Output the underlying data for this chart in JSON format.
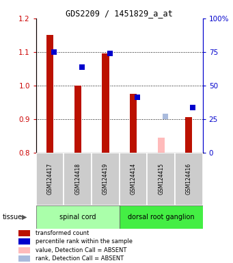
{
  "title": "GDS2209 / 1451829_a_at",
  "samples": [
    "GSM124417",
    "GSM124418",
    "GSM124419",
    "GSM124414",
    "GSM124415",
    "GSM124416"
  ],
  "red_values": [
    1.15,
    1.0,
    1.095,
    0.975,
    null,
    0.905
  ],
  "blue_values": [
    1.1,
    1.055,
    1.095,
    0.965,
    null,
    0.935
  ],
  "pink_values": [
    null,
    null,
    null,
    null,
    0.845,
    null
  ],
  "lavender_values": [
    null,
    null,
    null,
    null,
    0.907,
    null
  ],
  "red_color": "#bb1100",
  "blue_color": "#0000cc",
  "pink_color": "#ffbbbb",
  "lavender_color": "#aabbdd",
  "ylim_left": [
    0.8,
    1.2
  ],
  "ylim_right": [
    0,
    100
  ],
  "yticks_left": [
    0.8,
    0.9,
    1.0,
    1.1,
    1.2
  ],
  "yticks_right": [
    0,
    25,
    50,
    75,
    100
  ],
  "spinal_cord_color": "#aaffaa",
  "drg_color": "#44ee44",
  "label_bg_color": "#cccccc",
  "bar_width": 0.25,
  "dot_size": 28,
  "background_color": "#ffffff",
  "axis_left_color": "#cc0000",
  "axis_right_color": "#0000cc",
  "legend_items": [
    [
      "#bb1100",
      "transformed count"
    ],
    [
      "#0000cc",
      "percentile rank within the sample"
    ],
    [
      "#ffbbbb",
      "value, Detection Call = ABSENT"
    ],
    [
      "#aabbdd",
      "rank, Detection Call = ABSENT"
    ]
  ]
}
